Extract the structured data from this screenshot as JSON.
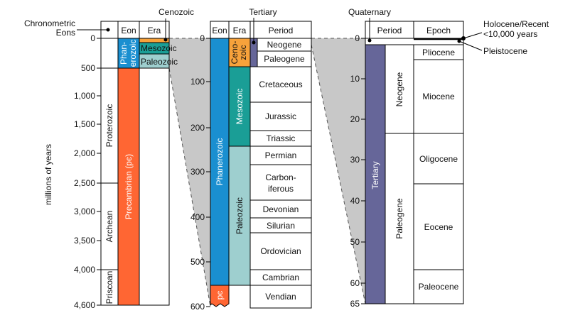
{
  "annotations": {
    "chronometric": "Chronometric",
    "eons_label": "Eons",
    "cenozoic": "Cenozoic",
    "tertiary": "Tertiary",
    "quaternary": "Quaternary",
    "holocene": "Holocene/Recent",
    "holocene_age": "<10,000 years",
    "pleistocene": "Pleistocene"
  },
  "panel1": {
    "axis_label": "millions of years",
    "headers": {
      "eon": "Eon",
      "era": "Era"
    },
    "ticks": [
      "0",
      "500",
      "1,000",
      "1,500",
      "2,000",
      "2,500",
      "3,000",
      "3,500",
      "4,000",
      "4,600"
    ],
    "eons_col": {
      "proterozoic": "Proterozoic",
      "archean": "Archean",
      "priscoan": "Priscoan"
    },
    "phanerozoic_line1": "Phan-",
    "phanerozoic_line2": "erozoic",
    "precambrian": "Precambrian (pє)",
    "eras": {
      "mesozoic": "Mesozoic",
      "paleozoic": "Paleozoic"
    }
  },
  "panel2": {
    "headers": {
      "eon": "Eon",
      "era": "Era",
      "period": "Period"
    },
    "ticks": [
      "0",
      "100",
      "200",
      "300",
      "400",
      "500",
      "600"
    ],
    "phanerozoic": "Phanerozoic",
    "pe": "pє",
    "cenozoic_line1": "Ceno-",
    "cenozoic_line2": "zoic",
    "mesozoic": "Mesozoic",
    "paleozoic": "Paleozoic",
    "periods": {
      "neogene": "Neogene",
      "paleogene": "Paleogene",
      "cretaceous": "Cretaceous",
      "jurassic": "Jurassic",
      "triassic": "Triassic",
      "permian": "Permian",
      "carbon_line1": "Carbon-",
      "carbon_line2": "iferous",
      "devonian": "Devonian",
      "silurian": "Silurian",
      "ordovician": "Ordovician",
      "cambrian": "Cambrian",
      "vendian": "Vendian"
    }
  },
  "panel3": {
    "headers": {
      "period": "Period",
      "epoch": "Epoch"
    },
    "ticks": [
      "0",
      "10",
      "20",
      "30",
      "40",
      "50",
      "60",
      "65"
    ],
    "tertiary": "Tertiary",
    "neogene": "Neogene",
    "paleogene": "Paleogene",
    "epochs": {
      "pliocene": "Pliocene",
      "miocene": "Miocene",
      "oligocene": "Oligocene",
      "eocene": "Eocene",
      "paleocene": "Paleocene"
    }
  },
  "colors": {
    "phanerozoic": "#1a8fd0",
    "precambrian": "#ff6633",
    "cenozoic": "#f7a23b",
    "mesozoic": "#1a9e96",
    "paleozoic": "#9ecfcf",
    "tertiary": "#666699",
    "connector": "#c8c8c8"
  }
}
